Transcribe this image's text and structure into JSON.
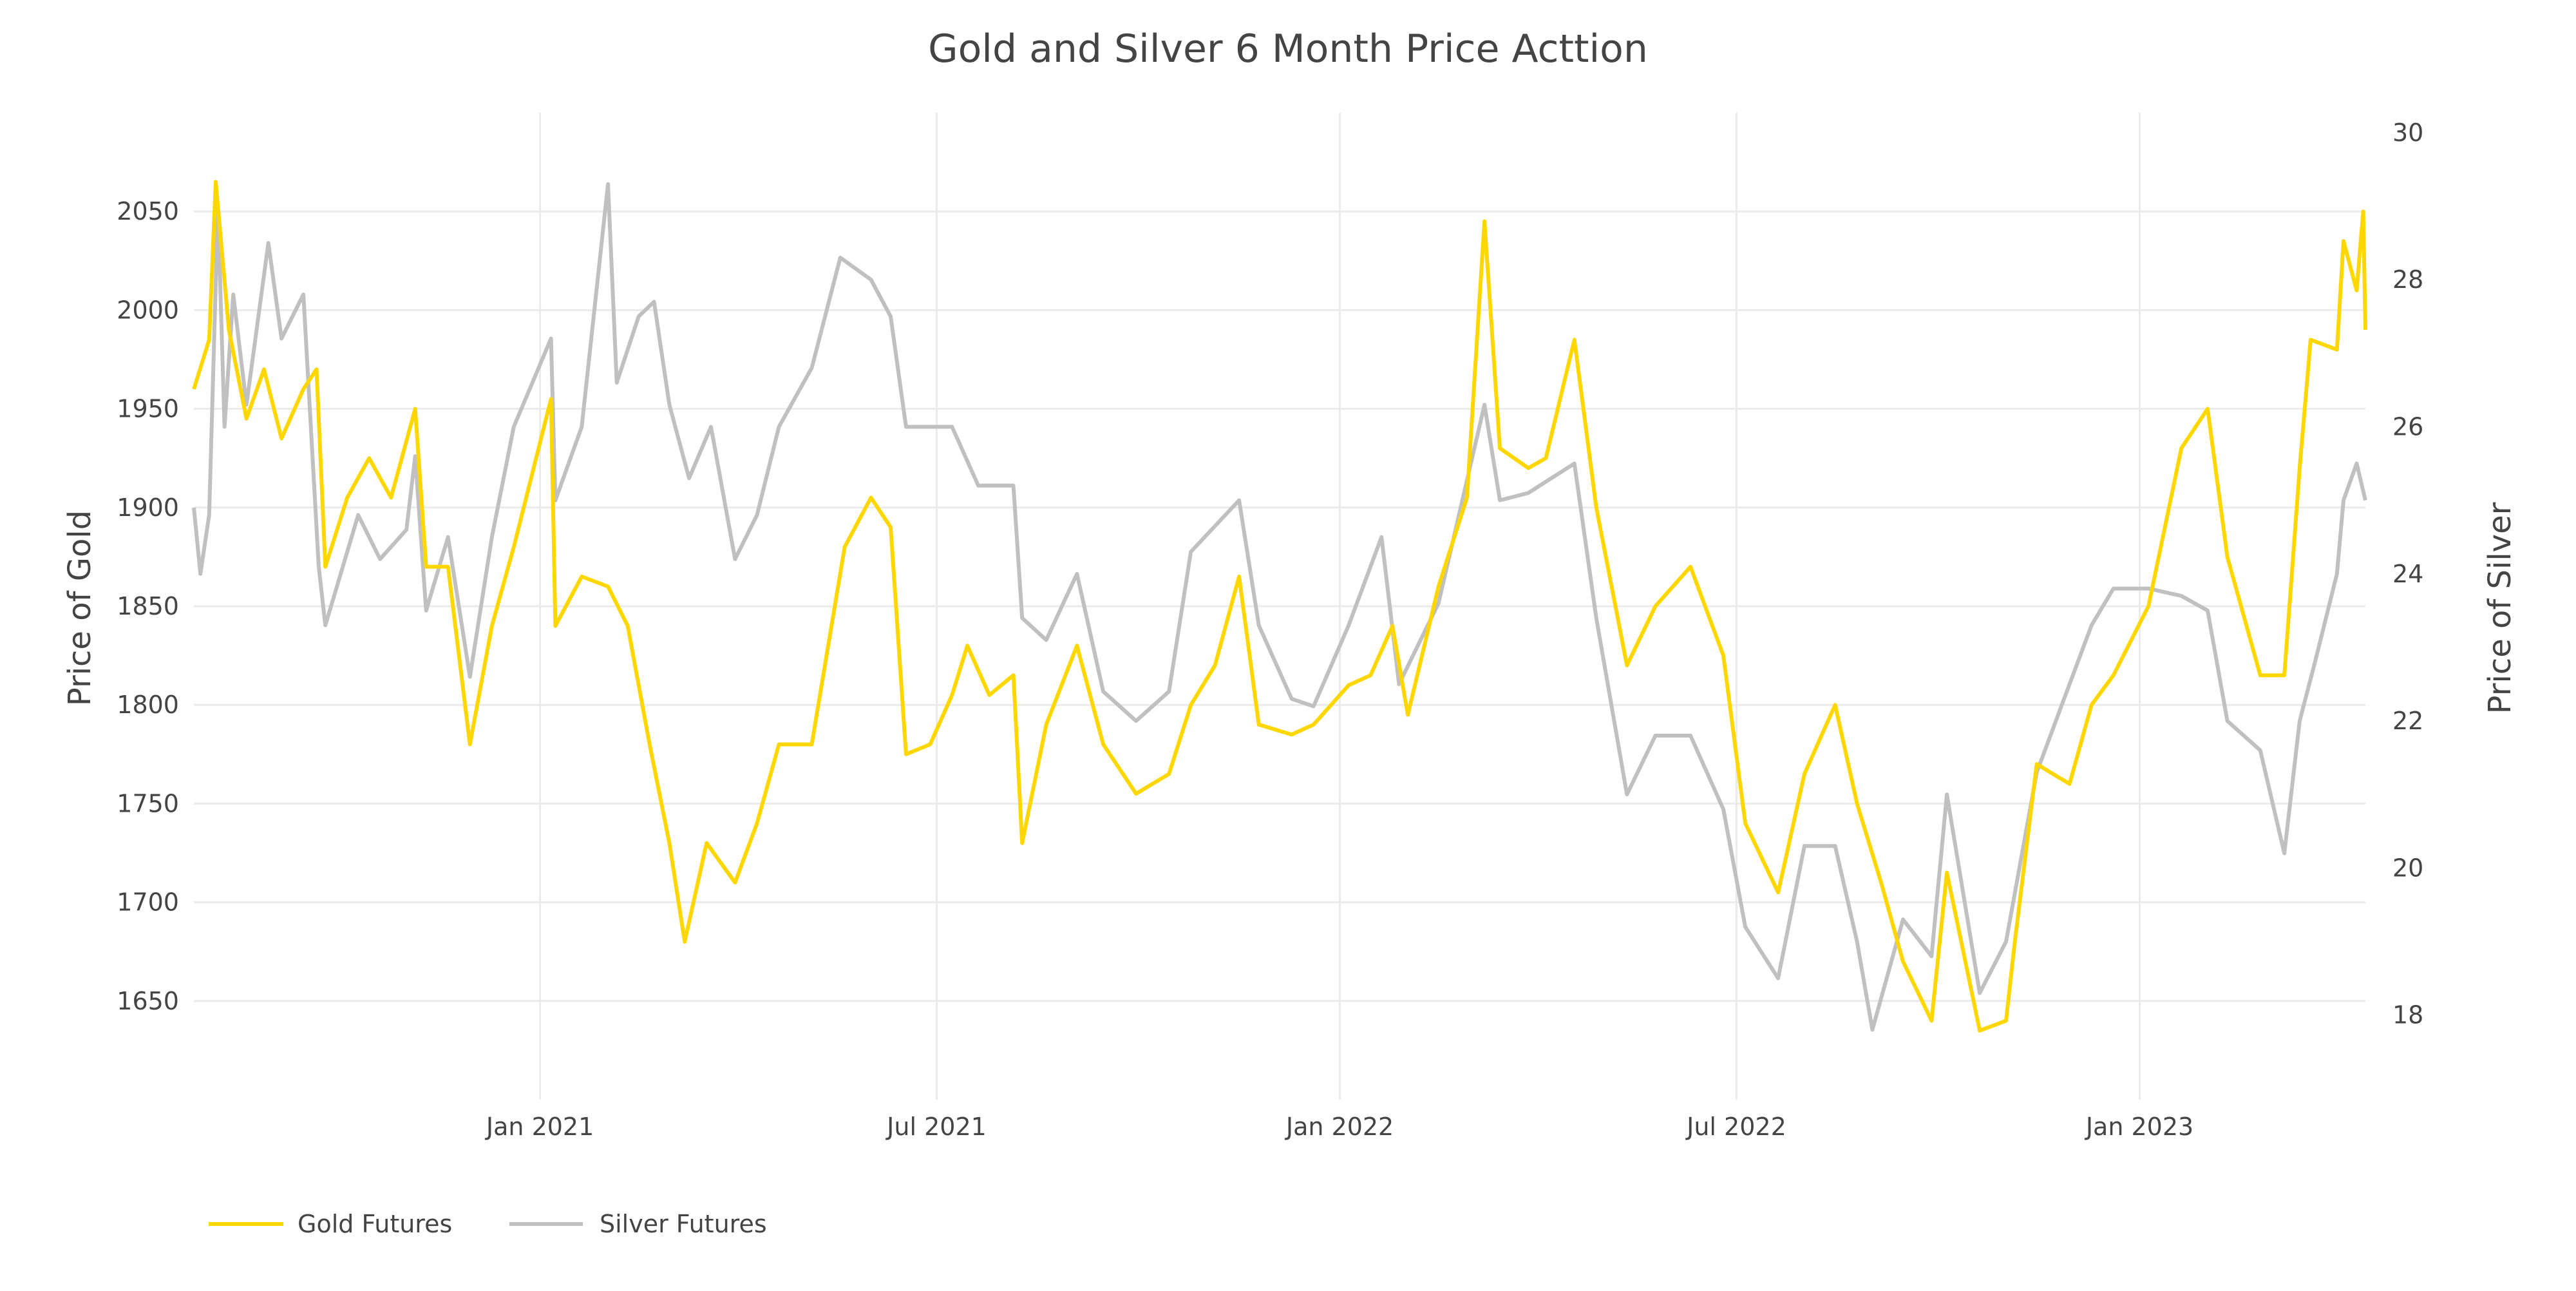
{
  "chart_data": {
    "type": "line",
    "title": "Gold and Silver 6 Month Price Acttion",
    "xlabel": "",
    "ylabel": "Price of Gold",
    "y2label": "Price of Silver",
    "x_range": [
      "2020-07-27",
      "2023-04-14"
    ],
    "ylim": [
      1600,
      2100
    ],
    "y2lim": [
      16.85,
      30.27
    ],
    "x_ticks": [
      {
        "date": "2021-01-01",
        "label": "Jan 2021"
      },
      {
        "date": "2021-07-01",
        "label": "Jul 2021"
      },
      {
        "date": "2022-01-01",
        "label": "Jan 2022"
      },
      {
        "date": "2022-07-01",
        "label": "Jul 2022"
      },
      {
        "date": "2023-01-01",
        "label": "Jan 2023"
      }
    ],
    "y_ticks": [
      1650,
      1700,
      1750,
      1800,
      1850,
      1900,
      1950,
      2000,
      2050
    ],
    "y2_ticks": [
      18,
      20,
      22,
      24,
      26,
      28,
      30
    ],
    "grid": true,
    "legend_position": "bottom-left",
    "colors": {
      "gold": "#FFD700",
      "silver": "#C0C0C0",
      "grid": "#EBEBEB",
      "text": "#444444"
    },
    "series": [
      {
        "name": "Gold Futures",
        "axis": "left",
        "color": "#FFD700",
        "x": [
          "2020-07-27",
          "2020-08-03",
          "2020-08-06",
          "2020-08-12",
          "2020-08-20",
          "2020-08-28",
          "2020-09-05",
          "2020-09-15",
          "2020-09-21",
          "2020-09-25",
          "2020-10-05",
          "2020-10-15",
          "2020-10-25",
          "2020-11-05",
          "2020-11-10",
          "2020-11-20",
          "2020-11-30",
          "2020-12-10",
          "2020-12-20",
          "2021-01-06",
          "2021-01-08",
          "2021-01-20",
          "2021-02-01",
          "2021-02-10",
          "2021-02-20",
          "2021-03-01",
          "2021-03-08",
          "2021-03-18",
          "2021-03-31",
          "2021-04-10",
          "2021-04-20",
          "2021-05-05",
          "2021-05-20",
          "2021-06-01",
          "2021-06-10",
          "2021-06-17",
          "2021-06-28",
          "2021-07-08",
          "2021-07-15",
          "2021-07-25",
          "2021-08-05",
          "2021-08-09",
          "2021-08-20",
          "2021-09-03",
          "2021-09-15",
          "2021-09-30",
          "2021-10-15",
          "2021-10-25",
          "2021-11-05",
          "2021-11-16",
          "2021-11-25",
          "2021-12-10",
          "2021-12-20",
          "2022-01-05",
          "2022-01-15",
          "2022-01-25",
          "2022-02-01",
          "2022-02-15",
          "2022-02-28",
          "2022-03-08",
          "2022-03-15",
          "2022-03-28",
          "2022-04-05",
          "2022-04-18",
          "2022-04-28",
          "2022-05-12",
          "2022-05-25",
          "2022-06-10",
          "2022-06-25",
          "2022-07-05",
          "2022-07-20",
          "2022-08-01",
          "2022-08-15",
          "2022-08-25",
          "2022-09-05",
          "2022-09-15",
          "2022-09-28",
          "2022-10-05",
          "2022-10-20",
          "2022-11-01",
          "2022-11-05",
          "2022-11-15",
          "2022-11-30",
          "2022-12-10",
          "2022-12-20",
          "2023-01-05",
          "2023-01-20",
          "2023-02-01",
          "2023-02-10",
          "2023-02-25",
          "2023-03-08",
          "2023-03-15",
          "2023-03-20",
          "2023-04-01",
          "2023-04-04",
          "2023-04-10",
          "2023-04-13",
          "2023-04-14"
        ],
        "values": [
          1960,
          1985,
          2065,
          1990,
          1945,
          1970,
          1935,
          1960,
          1970,
          1870,
          1905,
          1925,
          1905,
          1950,
          1870,
          1870,
          1780,
          1840,
          1880,
          1955,
          1840,
          1865,
          1860,
          1840,
          1780,
          1730,
          1680,
          1730,
          1710,
          1740,
          1780,
          1780,
          1880,
          1905,
          1890,
          1775,
          1780,
          1805,
          1830,
          1805,
          1815,
          1730,
          1790,
          1830,
          1780,
          1755,
          1765,
          1800,
          1820,
          1865,
          1790,
          1785,
          1790,
          1810,
          1815,
          1840,
          1795,
          1860,
          1905,
          2045,
          1930,
          1920,
          1925,
          1985,
          1900,
          1820,
          1850,
          1870,
          1825,
          1740,
          1705,
          1765,
          1800,
          1750,
          1710,
          1670,
          1640,
          1715,
          1635,
          1640,
          1680,
          1770,
          1760,
          1800,
          1815,
          1850,
          1930,
          1950,
          1875,
          1815,
          1815,
          1920,
          1985,
          1980,
          2035,
          2010,
          2050,
          1990
        ]
      },
      {
        "name": "Silver Futures",
        "axis": "right",
        "color": "#C0C0C0",
        "x": [
          "2020-07-27",
          "2020-07-30",
          "2020-08-03",
          "2020-08-07",
          "2020-08-10",
          "2020-08-14",
          "2020-08-20",
          "2020-08-30",
          "2020-09-05",
          "2020-09-15",
          "2020-09-22",
          "2020-09-25",
          "2020-10-10",
          "2020-10-20",
          "2020-11-01",
          "2020-11-05",
          "2020-11-10",
          "2020-11-20",
          "2020-11-30",
          "2020-12-10",
          "2020-12-20",
          "2021-01-06",
          "2021-01-08",
          "2021-01-20",
          "2021-02-01",
          "2021-02-05",
          "2021-02-15",
          "2021-02-22",
          "2021-03-01",
          "2021-03-10",
          "2021-03-20",
          "2021-03-31",
          "2021-04-10",
          "2021-04-20",
          "2021-05-05",
          "2021-05-18",
          "2021-06-01",
          "2021-06-10",
          "2021-06-17",
          "2021-06-28",
          "2021-07-08",
          "2021-07-20",
          "2021-08-05",
          "2021-08-09",
          "2021-08-20",
          "2021-09-03",
          "2021-09-15",
          "2021-09-30",
          "2021-10-15",
          "2021-10-25",
          "2021-11-16",
          "2021-11-25",
          "2021-12-10",
          "2021-12-20",
          "2022-01-05",
          "2022-01-20",
          "2022-01-28",
          "2022-02-15",
          "2022-03-08",
          "2022-03-15",
          "2022-03-28",
          "2022-04-18",
          "2022-04-28",
          "2022-05-12",
          "2022-05-25",
          "2022-06-10",
          "2022-06-25",
          "2022-07-05",
          "2022-07-20",
          "2022-08-01",
          "2022-08-15",
          "2022-08-25",
          "2022-09-01",
          "2022-09-15",
          "2022-09-28",
          "2022-10-05",
          "2022-10-20",
          "2022-11-01",
          "2022-11-15",
          "2022-11-30",
          "2022-12-10",
          "2022-12-20",
          "2023-01-05",
          "2023-01-20",
          "2023-02-01",
          "2023-02-10",
          "2023-02-25",
          "2023-03-08",
          "2023-03-15",
          "2023-03-22",
          "2023-04-01",
          "2023-04-04",
          "2023-04-10",
          "2023-04-14"
        ],
        "values": [
          24.9,
          24.0,
          24.8,
          29.0,
          26.0,
          27.8,
          26.3,
          28.5,
          27.2,
          27.8,
          24.1,
          23.3,
          24.8,
          24.2,
          24.6,
          25.6,
          23.5,
          24.5,
          22.6,
          24.5,
          26.0,
          27.2,
          25.0,
          26.0,
          29.3,
          26.6,
          27.5,
          27.7,
          26.3,
          25.3,
          26.0,
          24.2,
          24.8,
          26.0,
          26.8,
          28.3,
          28.0,
          27.5,
          26.0,
          26.0,
          26.0,
          25.2,
          25.2,
          23.4,
          23.1,
          24.0,
          22.4,
          22.0,
          22.4,
          24.3,
          25.0,
          23.3,
          22.3,
          22.2,
          23.3,
          24.5,
          22.5,
          23.6,
          26.3,
          25.0,
          25.1,
          25.5,
          23.4,
          21.0,
          21.8,
          21.8,
          20.8,
          19.2,
          18.5,
          20.3,
          20.3,
          19.0,
          17.8,
          19.3,
          18.8,
          21.0,
          18.3,
          19.0,
          21.3,
          22.5,
          23.3,
          23.8,
          23.8,
          23.7,
          23.5,
          22.0,
          21.6,
          20.2,
          22.0,
          22.8,
          24.0,
          25.0,
          25.5,
          25.0
        ]
      }
    ]
  }
}
